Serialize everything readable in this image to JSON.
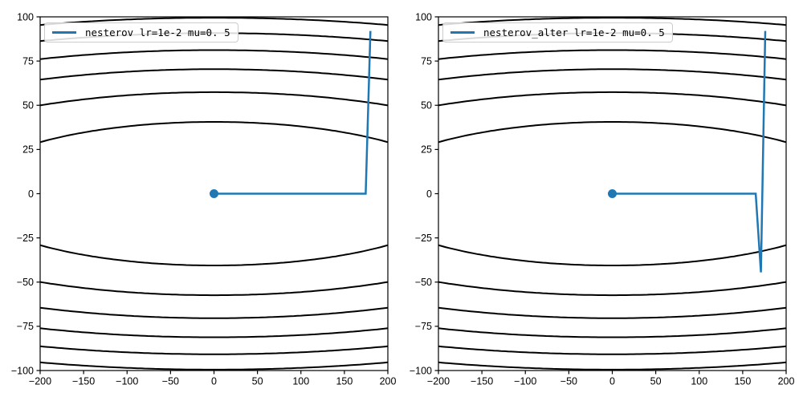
{
  "figure": {
    "background": "#ffffff",
    "frame_color": "#000000"
  },
  "chart_data": [
    {
      "type": "line",
      "title": "",
      "xlabel": "",
      "ylabel": "",
      "legend_label": "nesterov lr=1e-2 mu=0. 5",
      "legend_position": "upper-left",
      "line_color": "#1f77b4",
      "contour_color": "#000000",
      "grid": false,
      "xlim": [
        -200,
        200
      ],
      "ylim": [
        -100,
        100
      ],
      "xticks": [
        -200,
        -150,
        -100,
        -50,
        0,
        50,
        100,
        150,
        200
      ],
      "xtick_labels": [
        "−200",
        "−150",
        "−100",
        "−50",
        "0",
        "50",
        "100",
        "150",
        "200"
      ],
      "yticks": [
        -100,
        -75,
        -50,
        -25,
        0,
        25,
        50,
        75,
        100
      ],
      "ytick_labels": [
        "−100",
        "−75",
        "−50",
        "−25",
        "0",
        "25",
        "50",
        "75",
        "100"
      ],
      "contours": {
        "description": "nested ellipses y^2 + 0.02*x^2 = level, top and bottom arcs",
        "x2_coeff": 0.02,
        "levels_y0": [
          40.6,
          57.4,
          70.4,
          81.2,
          90.8,
          99.5
        ]
      },
      "trajectory": [
        [
          180,
          92
        ],
        [
          174.5,
          0
        ],
        [
          0,
          0
        ]
      ],
      "origin_marker": [
        0,
        0
      ]
    },
    {
      "type": "line",
      "title": "",
      "xlabel": "",
      "ylabel": "",
      "legend_label": "nesterov_alter lr=1e-2 mu=0. 5",
      "legend_position": "upper-left",
      "line_color": "#1f77b4",
      "contour_color": "#000000",
      "grid": false,
      "xlim": [
        -200,
        200
      ],
      "ylim": [
        -100,
        100
      ],
      "xticks": [
        -200,
        -150,
        -100,
        -50,
        0,
        50,
        100,
        150,
        200
      ],
      "xtick_labels": [
        "−200",
        "−150",
        "−100",
        "−50",
        "0",
        "50",
        "100",
        "150",
        "200"
      ],
      "yticks": [
        -100,
        -75,
        -50,
        -25,
        0,
        25,
        50,
        75,
        100
      ],
      "ytick_labels": [
        "−100",
        "−75",
        "−50",
        "−25",
        "0",
        "25",
        "50",
        "75",
        "100"
      ],
      "contours": {
        "description": "nested ellipses y^2 + 0.02*x^2 = level, top and bottom arcs",
        "x2_coeff": 0.02,
        "levels_y0": [
          40.6,
          57.4,
          70.4,
          81.2,
          90.8,
          99.5
        ]
      },
      "trajectory": [
        [
          176,
          92
        ],
        [
          171,
          -44.5
        ],
        [
          165,
          0
        ],
        [
          0,
          0
        ]
      ],
      "origin_marker": [
        0,
        0
      ]
    }
  ]
}
